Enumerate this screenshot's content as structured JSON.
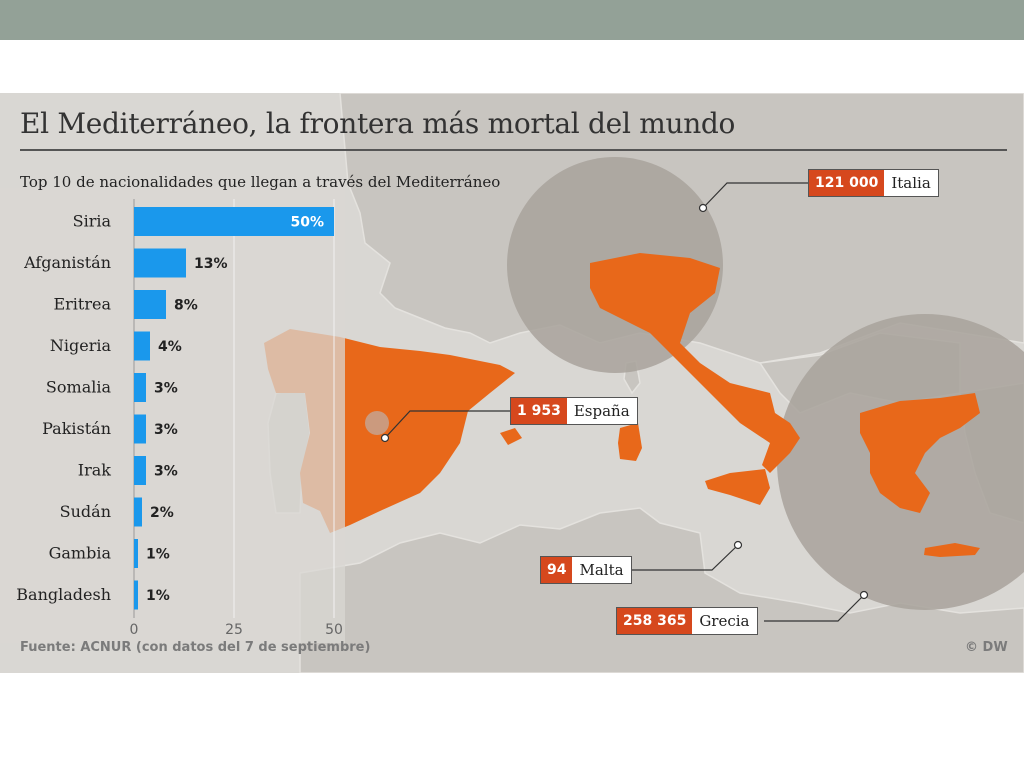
{
  "title": "El Mediterráneo, la frontera más mortal del mundo",
  "subtitle": "Top 10 de nacionalidades que llegan a través del Mediterráneo",
  "source": "Fuente: ACNUR  (con datos del 7 de septiembre)",
  "credit": "© DW",
  "colors": {
    "bar": "#1a98ec",
    "highlight_country": "#e8681a",
    "callout_number_bg": "#d6481d",
    "circle": "#a8a29b",
    "land": "#c9c6c1",
    "sea": "#d9d7d3"
  },
  "chart_data": {
    "type": "bar",
    "orientation": "horizontal",
    "categories": [
      "Siria",
      "Afganistán",
      "Eritrea",
      "Nigeria",
      "Somalia",
      "Pakistán",
      "Irak",
      "Sudán",
      "Gambia",
      "Bangladesh"
    ],
    "values": [
      50,
      13,
      8,
      4,
      3,
      3,
      3,
      2,
      1,
      1
    ],
    "value_labels": [
      "50%",
      "13%",
      "8%",
      "4%",
      "3%",
      "3%",
      "3%",
      "2%",
      "1%",
      "1%"
    ],
    "xlim": [
      0,
      50
    ],
    "x_ticks": [
      "0",
      "25",
      "50"
    ],
    "grid": false
  },
  "callouts": [
    {
      "id": "italia",
      "number": "121 000",
      "country": "Italia"
    },
    {
      "id": "espana",
      "number": "1 953",
      "country": "España"
    },
    {
      "id": "malta",
      "number": "94",
      "country": "Malta"
    },
    {
      "id": "grecia",
      "number": "258 365",
      "country": "Grecia"
    }
  ]
}
